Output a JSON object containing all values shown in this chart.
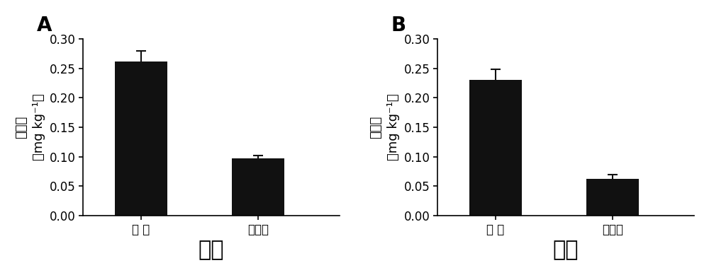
{
  "panel_A": {
    "label": "A",
    "categories": [
      "对 照",
      "本发明"
    ],
    "values": [
      0.261,
      0.097
    ],
    "errors": [
      0.018,
      0.005
    ],
    "xlabel": "中稺",
    "ylabel_line1": "镀含量",
    "ylabel_line2": "（mg kg⁻¹）",
    "ylim": [
      0.0,
      0.3
    ],
    "yticks": [
      0.0,
      0.05,
      0.1,
      0.15,
      0.2,
      0.25,
      0.3
    ]
  },
  "panel_B": {
    "label": "B",
    "categories": [
      "对 照",
      "本发明"
    ],
    "values": [
      0.23,
      0.063
    ],
    "errors": [
      0.018,
      0.007
    ],
    "xlabel": "小麦",
    "ylabel_line1": "镀含量",
    "ylabel_line2": "（mg kg⁻¹）",
    "ylim": [
      0.0,
      0.3
    ],
    "yticks": [
      0.0,
      0.05,
      0.1,
      0.15,
      0.2,
      0.25,
      0.3
    ]
  },
  "bar_color": "#111111",
  "bar_width": 0.45,
  "bar_positions": [
    1,
    2
  ],
  "error_capsize": 5,
  "error_color": "#111111",
  "error_linewidth": 1.5,
  "background_color": "#ffffff",
  "xlabel_fontsize": 22,
  "ylabel_fontsize": 13,
  "tick_fontsize": 12,
  "panel_label_fontsize": 20
}
